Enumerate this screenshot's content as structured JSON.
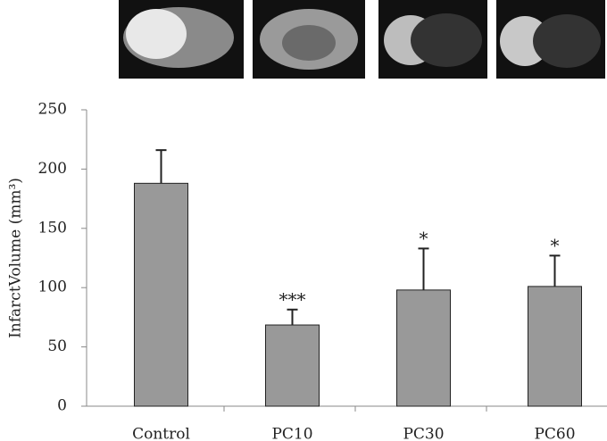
{
  "chart_data": {
    "type": "bar",
    "y_label": "InfarctVolume (mm³)",
    "categories": [
      "Control",
      "PC10",
      "PC30",
      "PC60"
    ],
    "values": [
      188,
      68.5,
      98,
      101
    ],
    "errors": [
      28,
      13,
      35,
      26
    ],
    "annotations": [
      null,
      "***",
      "*",
      "*"
    ],
    "color": "#999999",
    "ylim": [
      0,
      250
    ],
    "yticks": [
      0,
      50,
      100,
      150,
      200,
      250
    ]
  }
}
